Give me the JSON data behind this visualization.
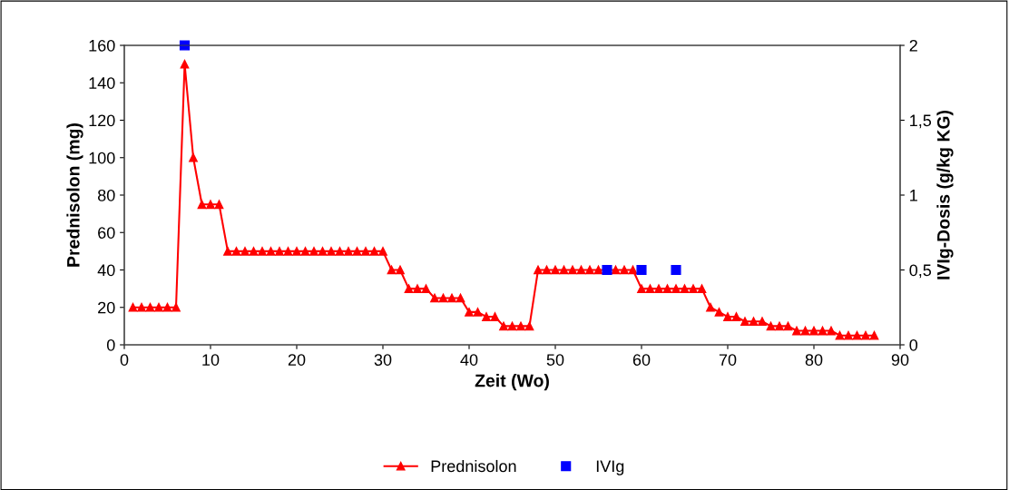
{
  "chart_data": {
    "type": "line",
    "xlabel": "Zeit (Wo)",
    "ylabel": "Prednisolon (mg)",
    "y2label": "IVIg-Dosis (g/kg KG)",
    "xlim": [
      0,
      90
    ],
    "xticks": [
      0,
      10,
      20,
      30,
      40,
      50,
      60,
      70,
      80,
      90
    ],
    "ylim": [
      0,
      160
    ],
    "yticks": [
      0,
      20,
      40,
      60,
      80,
      100,
      120,
      140,
      160
    ],
    "y2lim": [
      0,
      2
    ],
    "y2ticks": [
      0,
      {
        "value": 0.5,
        "label": "0,5"
      },
      1,
      {
        "value": 1.5,
        "label": "1,5"
      },
      2
    ],
    "grid": false,
    "legend": "bottom",
    "series": [
      {
        "name": "Prednisolon",
        "color": "#ff0000",
        "marker": "triangle",
        "line_style": "solid",
        "x": [
          1,
          2,
          3,
          4,
          5,
          6,
          7,
          8,
          9,
          10,
          11,
          12,
          13,
          14,
          15,
          16,
          17,
          18,
          19,
          20,
          21,
          22,
          23,
          24,
          25,
          26,
          27,
          28,
          29,
          30,
          31,
          32,
          33,
          34,
          35,
          36,
          37,
          38,
          39,
          40,
          41,
          42,
          43,
          44,
          45,
          46,
          47,
          48,
          49,
          50,
          51,
          52,
          53,
          54,
          55,
          56,
          57,
          58,
          59,
          60,
          61,
          62,
          63,
          64,
          65,
          66,
          67,
          68,
          69,
          70,
          71,
          72,
          73,
          74,
          75,
          76,
          77,
          78,
          79,
          80,
          81,
          82,
          83,
          84,
          85,
          86,
          87
        ],
        "values": [
          20,
          20,
          20,
          20,
          20,
          20,
          150,
          100,
          75,
          75,
          75,
          50,
          50,
          50,
          50,
          50,
          50,
          50,
          50,
          50,
          50,
          50,
          50,
          50,
          50,
          50,
          50,
          50,
          50,
          50,
          40,
          40,
          30,
          30,
          30,
          25,
          25,
          25,
          25,
          17.5,
          17.5,
          15,
          15,
          10,
          10,
          10,
          10,
          40,
          40,
          40,
          40,
          40,
          40,
          40,
          40,
          40,
          40,
          40,
          40,
          30,
          30,
          30,
          30,
          30,
          30,
          30,
          30,
          20,
          17.5,
          15,
          15,
          12.5,
          12.5,
          12.5,
          10,
          10,
          10,
          7.5,
          7.5,
          7.5,
          7.5,
          7.5,
          5,
          5,
          5,
          5,
          5
        ]
      },
      {
        "name": "IVIg",
        "type": "scatter",
        "axis": "y2",
        "color": "#0000ff",
        "marker": "square",
        "x": [
          7,
          56,
          60,
          64
        ],
        "values": [
          2,
          0.5,
          0.5,
          0.5
        ]
      }
    ]
  }
}
